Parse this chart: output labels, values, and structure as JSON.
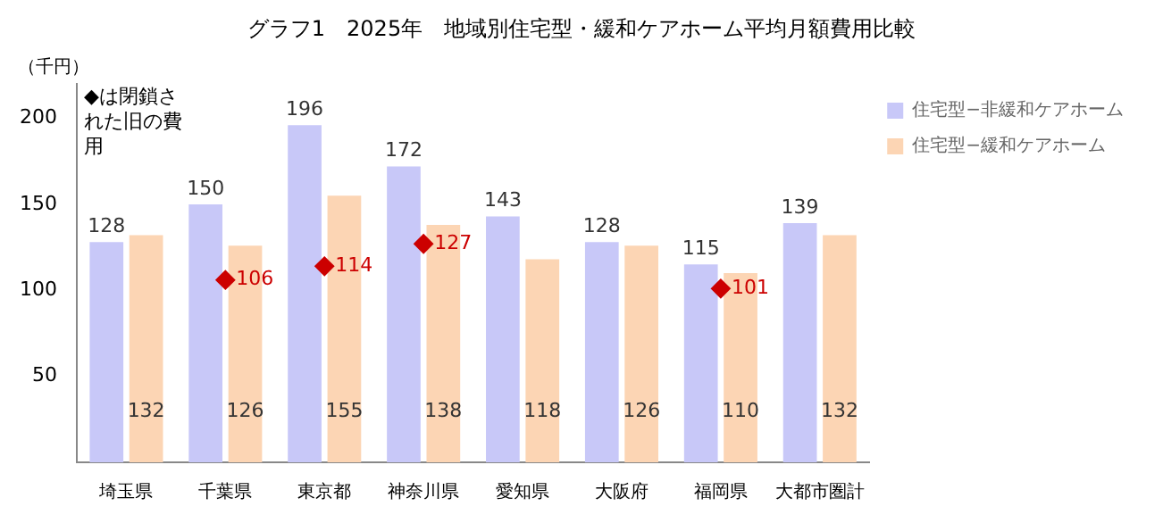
{
  "chart_data": {
    "type": "bar",
    "title": "グラフ1　2025年　地域別住宅型・緩和ケアホーム平均月額費用比較",
    "ylabel": "（千円）",
    "annotations": [
      "◆は閉鎖された旧の費用"
    ],
    "categories": [
      "埼玉県",
      "千葉県",
      "東京都",
      "神奈川県",
      "愛知県",
      "大阪府",
      "福岡県",
      "大都市圏計"
    ],
    "series": [
      {
        "name": "住宅型−非緩和ケアホーム",
        "color": "#c8c8f8",
        "values": [
          128,
          150,
          196,
          172,
          143,
          128,
          115,
          139
        ]
      },
      {
        "name": "住宅型−緩和ケアホーム",
        "color": "#fcd5b4",
        "values": [
          132,
          126,
          155,
          138,
          118,
          126,
          110,
          132
        ]
      },
      {
        "type": "scatter",
        "marker": "diamond",
        "color": "#cc0000",
        "values": [
          null,
          106,
          114,
          127,
          null,
          null,
          101,
          null
        ]
      }
    ],
    "ylim": [
      0,
      220
    ],
    "yticks": [
      50,
      100,
      150,
      200
    ],
    "grid": false,
    "legend": "top right",
    "data_labels": true
  }
}
